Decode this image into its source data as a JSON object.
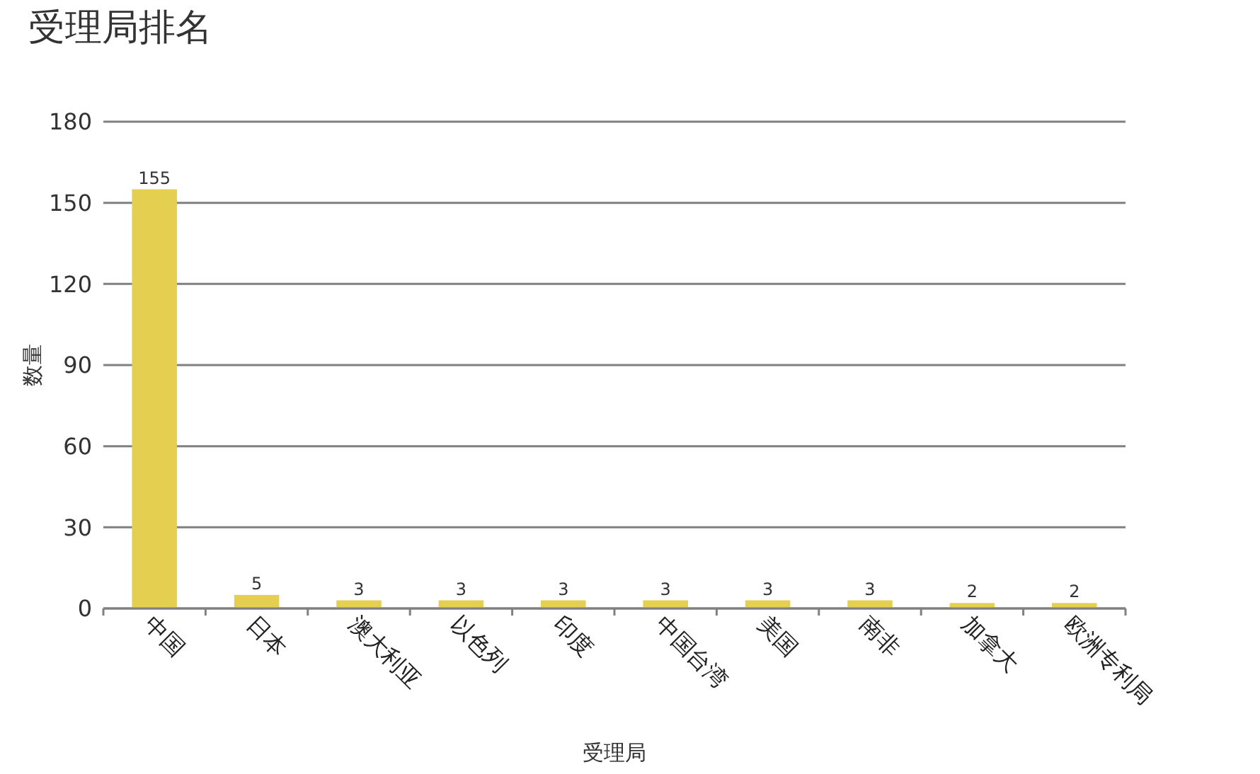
{
  "chart_data": {
    "type": "bar",
    "title": "受理局排名",
    "xlabel": "受理局",
    "ylabel": "数量",
    "categories": [
      "中国",
      "日本",
      "澳大利亚",
      "以色列",
      "印度",
      "中国台湾",
      "美国",
      "南非",
      "加拿大",
      "欧洲专利局"
    ],
    "values": [
      155,
      5,
      3,
      3,
      3,
      3,
      3,
      3,
      2,
      2
    ],
    "color": "#e5cf50",
    "ylim": [
      0,
      180
    ],
    "yticks": [
      0,
      30,
      60,
      90,
      120,
      150,
      180
    ],
    "grid": "y",
    "data_labels": true
  }
}
